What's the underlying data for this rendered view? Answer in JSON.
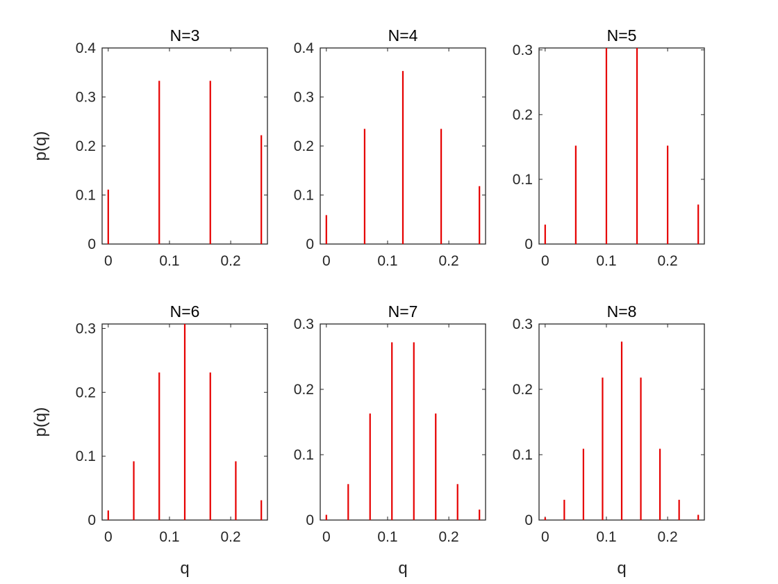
{
  "chart_data": [
    {
      "type": "stem",
      "title": "N=3",
      "xlabel": "",
      "ylabel": "p(q)",
      "xlim": [
        -0.01,
        0.26
      ],
      "ylim": [
        0,
        0.4
      ],
      "xticks": [
        "0",
        "0.1",
        "0.2"
      ],
      "yticks": [
        "0",
        "0.1",
        "0.2",
        "0.3",
        "0.4"
      ],
      "x": [
        0,
        0.0833,
        0.1667,
        0.25
      ],
      "values": [
        0.111,
        0.333,
        0.333,
        0.222
      ]
    },
    {
      "type": "stem",
      "title": "N=4",
      "xlabel": "",
      "ylabel": "",
      "xlim": [
        -0.01,
        0.26
      ],
      "ylim": [
        0,
        0.4
      ],
      "xticks": [
        "0",
        "0.1",
        "0.2"
      ],
      "yticks": [
        "0",
        "0.1",
        "0.2",
        "0.3",
        "0.4"
      ],
      "x": [
        0,
        0.0625,
        0.125,
        0.1875,
        0.25
      ],
      "values": [
        0.059,
        0.235,
        0.353,
        0.235,
        0.118
      ]
    },
    {
      "type": "stem",
      "title": "N=5",
      "xlabel": "",
      "ylabel": "",
      "xlim": [
        -0.01,
        0.26
      ],
      "ylim": [
        0,
        0.303
      ],
      "xticks": [
        "0",
        "0.1",
        "0.2"
      ],
      "yticks": [
        "0",
        "0.1",
        "0.2",
        "0.3"
      ],
      "x": [
        0,
        0.05,
        0.1,
        0.15,
        0.2,
        0.25
      ],
      "values": [
        0.03,
        0.152,
        0.303,
        0.303,
        0.152,
        0.061
      ]
    },
    {
      "type": "stem",
      "title": "N=6",
      "xlabel": "q",
      "ylabel": "p(q)",
      "xlim": [
        -0.01,
        0.26
      ],
      "ylim": [
        0,
        0.307
      ],
      "xticks": [
        "0",
        "0.1",
        "0.2"
      ],
      "yticks": [
        "0",
        "0.1",
        "0.2",
        "0.3"
      ],
      "x": [
        0,
        0.0417,
        0.0833,
        0.125,
        0.1667,
        0.2083,
        0.25
      ],
      "values": [
        0.015,
        0.092,
        0.231,
        0.307,
        0.231,
        0.092,
        0.031
      ]
    },
    {
      "type": "stem",
      "title": "N=7",
      "xlabel": "q",
      "ylabel": "",
      "xlim": [
        -0.01,
        0.26
      ],
      "ylim": [
        0,
        0.3
      ],
      "xticks": [
        "0",
        "0.1",
        "0.2"
      ],
      "yticks": [
        "0",
        "0.1",
        "0.2",
        "0.3"
      ],
      "x": [
        0,
        0.0357,
        0.0714,
        0.1071,
        0.1429,
        0.1786,
        0.2143,
        0.25
      ],
      "values": [
        0.008,
        0.055,
        0.163,
        0.272,
        0.272,
        0.163,
        0.055,
        0.016
      ]
    },
    {
      "type": "stem",
      "title": "N=8",
      "xlabel": "q",
      "ylabel": "",
      "xlim": [
        -0.01,
        0.26
      ],
      "ylim": [
        0,
        0.3
      ],
      "xticks": [
        "0",
        "0.1",
        "0.2"
      ],
      "yticks": [
        "0",
        "0.1",
        "0.2",
        "0.3"
      ],
      "x": [
        0,
        0.03125,
        0.0625,
        0.09375,
        0.125,
        0.15625,
        0.1875,
        0.21875,
        0.25
      ],
      "values": [
        0.004,
        0.031,
        0.109,
        0.218,
        0.273,
        0.218,
        0.109,
        0.031,
        0.008
      ]
    }
  ],
  "colors": {
    "stem": "#e60000",
    "axis": "#262626",
    "background": "#ffffff"
  }
}
